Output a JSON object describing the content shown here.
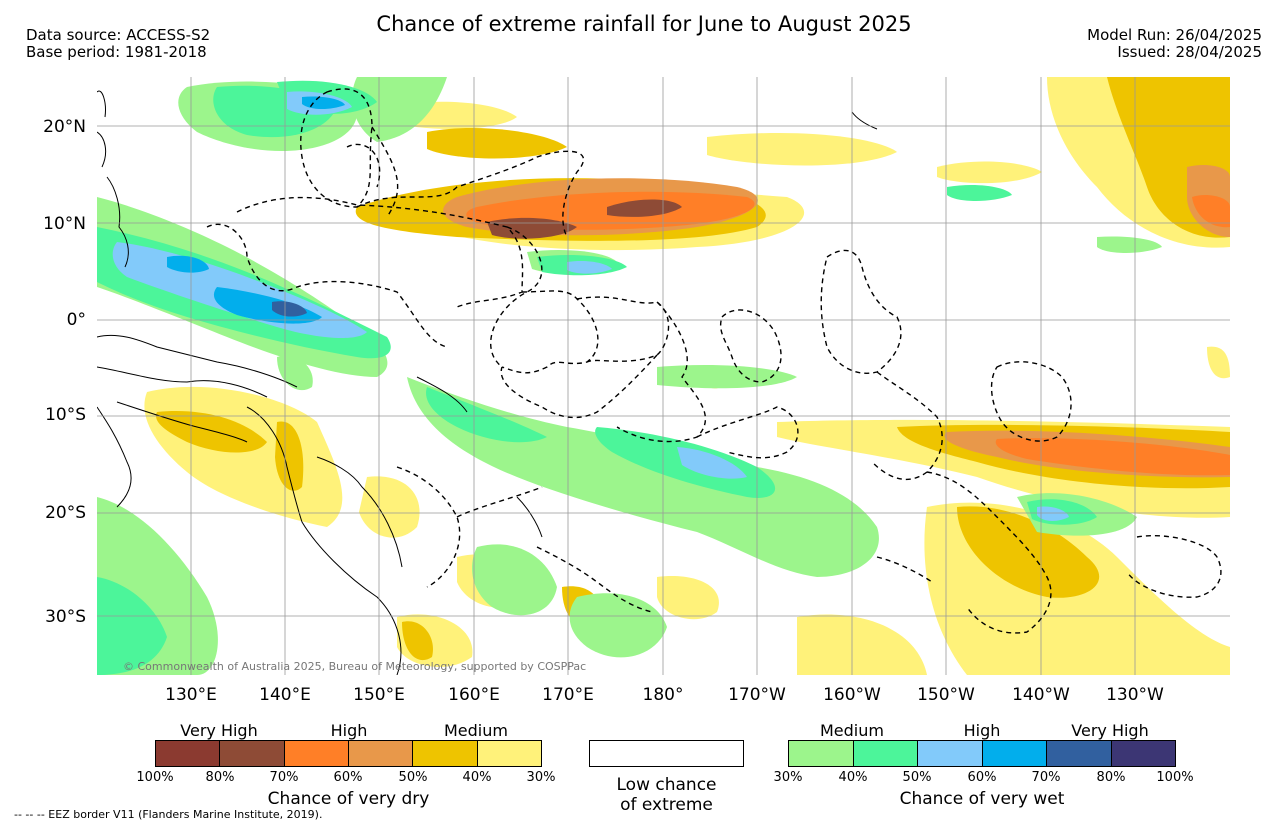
{
  "header": {
    "title": "Chance of extreme rainfall for June to August 2025",
    "data_source": "Data source: ACCESS-S2",
    "base_period": "Base period: 1981-2018",
    "model_run": "Model Run: 26/04/2025",
    "issued": "Issued: 28/04/2025"
  },
  "map": {
    "copyright": "© Commonwealth of Australia 2025, Bureau of Meteorology, supported by COSPPac",
    "lat_labels": [
      "20°N",
      "10°N",
      "0°",
      "10°S",
      "20°S",
      "30°S"
    ],
    "lon_labels": [
      "130°E",
      "140°E",
      "150°E",
      "160°E",
      "170°E",
      "180°",
      "170°W",
      "160°W",
      "150°W",
      "140°W",
      "130°W"
    ]
  },
  "legend": {
    "dry": {
      "categories": [
        "Very High",
        "High",
        "Medium"
      ],
      "ticks": [
        "100%",
        "80%",
        "70%",
        "60%",
        "50%",
        "40%",
        "30%"
      ],
      "colors": [
        "#8b3a30",
        "#8e4b36",
        "#ff7f27",
        "#e8984a",
        "#eec400",
        "#fff27a"
      ],
      "caption": "Chance of very dry"
    },
    "neutral": {
      "caption_line1": "Low chance",
      "caption_line2": "of extreme",
      "color": "#ffffff"
    },
    "wet": {
      "categories": [
        "Medium",
        "High",
        "Very High"
      ],
      "ticks": [
        "30%",
        "40%",
        "50%",
        "60%",
        "70%",
        "80%",
        "100%"
      ],
      "colors": [
        "#9cf58c",
        "#4cf59a",
        "#82cafa",
        "#02aeec",
        "#31609f",
        "#3c3674"
      ],
      "caption": "Chance of very wet"
    }
  },
  "footnote": "-- -- -- EEZ border V11 (Flanders Marine Institute, 2019)."
}
